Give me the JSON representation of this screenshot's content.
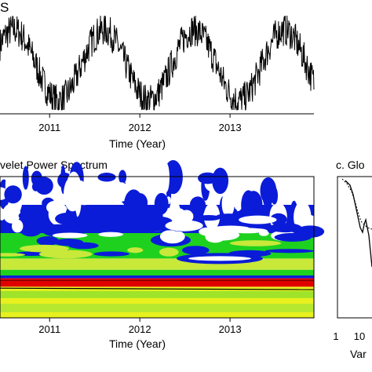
{
  "chart_data": [
    {
      "type": "line",
      "panel_label": "S",
      "title": "",
      "xlabel": "Time (Year)",
      "ylabel": "",
      "x_ticks": [
        "2011",
        "2012",
        "2013"
      ],
      "x_range": [
        2010.45,
        2013.93
      ],
      "y_range": [
        0,
        1
      ],
      "peaks_at": [
        2010.6,
        2011.55,
        2012.55,
        2013.6
      ],
      "troughs_at": [
        2011.0,
        2012.05,
        2013.1
      ],
      "series": [
        {
          "values_description_free": true
        }
      ]
    },
    {
      "type": "heatmap",
      "title": "velet Power Spectrum",
      "xlabel": "Time (Year)",
      "x_ticks": [
        "2011",
        "2012",
        "2013"
      ],
      "x_range": [
        2010.45,
        2013.93
      ],
      "colors": [
        "#ffffff",
        "#0a1cd8",
        "#1fd11f",
        "#c8e83a",
        "#e8f01e",
        "#e00000"
      ],
      "annual_band_color": "#e00000"
    },
    {
      "type": "line",
      "title": "c. Glo",
      "xlabel": "Var",
      "x_ticks": [
        "1",
        "10"
      ],
      "xscale": "log"
    }
  ]
}
